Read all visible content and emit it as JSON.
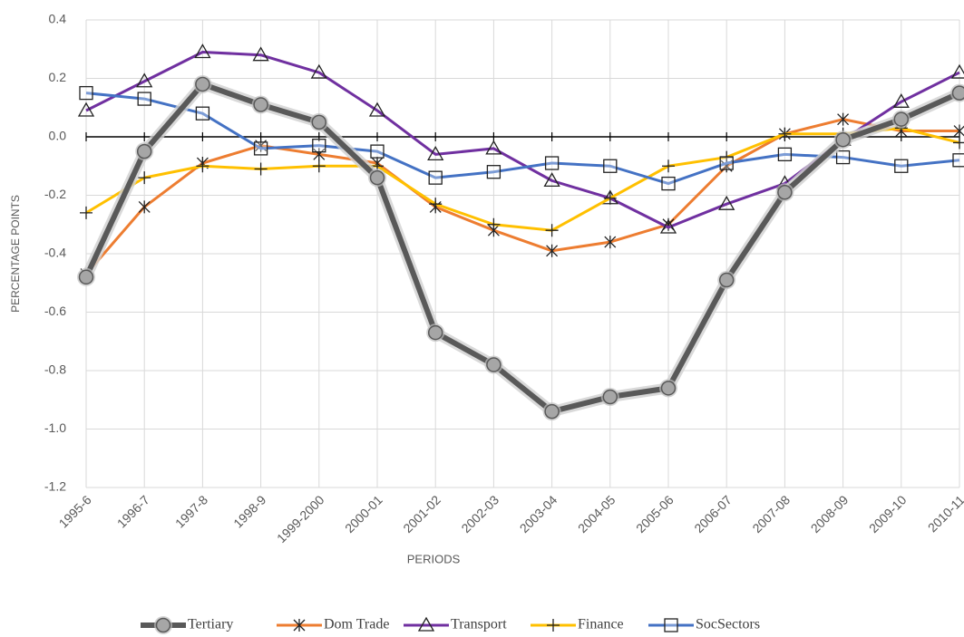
{
  "chart_data": {
    "type": "line",
    "xlabel": "PERIODS",
    "ylabel": "PERCENTAGE POINTS",
    "categories": [
      "1995-6",
      "1996-7",
      "1997-8",
      "1998-9",
      "1999-2000",
      "2000-01",
      "2001-02",
      "2002-03",
      "2003-04",
      "2004-05",
      "2005-06",
      "2006-07",
      "2007-08",
      "2008-09",
      "2009-10",
      "2010-11"
    ],
    "ylim": [
      -1.2,
      0.4
    ],
    "yticks": [
      0.4,
      0.2,
      {
        "value": 0,
        "label": "0.0"
      },
      -0.2,
      -0.4,
      -0.6,
      -0.8,
      {
        "value": -1,
        "label": "-1.0"
      },
      -1.2
    ],
    "grid": true,
    "legend": "bottom",
    "series": [
      {
        "name": "Tertiary",
        "color": "#595959",
        "marker": "circle",
        "line_width": 6,
        "values": [
          -0.48,
          -0.05,
          0.18,
          0.11,
          0.05,
          -0.14,
          -0.67,
          -0.78,
          -0.94,
          -0.89,
          -0.86,
          -0.49,
          -0.19,
          -0.01,
          0.06,
          0.15
        ]
      },
      {
        "name": "Dom Trade",
        "color": "#ed7d31",
        "marker": "asterisk",
        "line_width": 3,
        "values": [
          -0.47,
          -0.24,
          -0.09,
          -0.03,
          -0.06,
          -0.09,
          -0.24,
          -0.32,
          -0.39,
          -0.36,
          -0.3,
          -0.1,
          0.01,
          0.06,
          0.02,
          0.02
        ]
      },
      {
        "name": "Transport",
        "color": "#7030a0",
        "marker": "triangle",
        "line_width": 3,
        "values": [
          0.09,
          0.19,
          0.29,
          0.28,
          0.22,
          0.09,
          -0.06,
          -0.04,
          -0.15,
          -0.21,
          -0.31,
          -0.23,
          -0.16,
          -0.01,
          0.12,
          0.22
        ]
      },
      {
        "name": "Finance",
        "color": "#ffc000",
        "marker": "plus",
        "line_width": 3,
        "values": [
          -0.26,
          -0.14,
          -0.1,
          -0.11,
          -0.1,
          -0.1,
          -0.23,
          -0.3,
          -0.32,
          -0.21,
          -0.1,
          -0.07,
          0.01,
          0.01,
          0.03,
          -0.02
        ]
      },
      {
        "name": "SocSectors",
        "color": "#4472c4",
        "marker": "square",
        "line_width": 3,
        "values": [
          0.15,
          0.13,
          0.08,
          -0.04,
          -0.03,
          -0.05,
          -0.14,
          -0.12,
          -0.09,
          -0.1,
          -0.16,
          -0.09,
          -0.06,
          -0.07,
          -0.1,
          -0.08
        ]
      }
    ]
  }
}
